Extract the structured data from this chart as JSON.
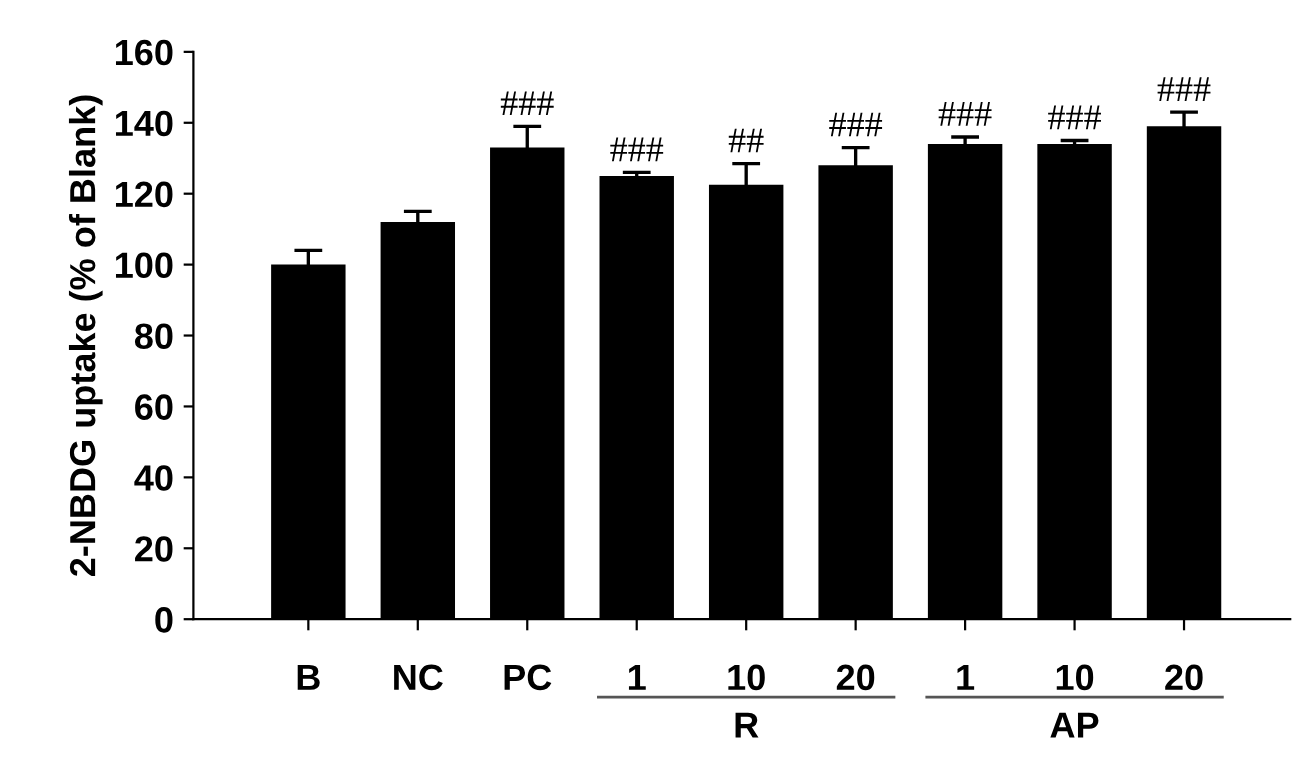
{
  "chart_data": {
    "type": "bar",
    "ylabel": "2-NBDG uptake (% of Blank)",
    "categories": [
      "B",
      "NC",
      "PC",
      "1",
      "10",
      "20",
      "1",
      "10",
      "20"
    ],
    "values": [
      100,
      112,
      133,
      125,
      122.5,
      128,
      134,
      134,
      139
    ],
    "errors": [
      4,
      3,
      6,
      1,
      6,
      5,
      2,
      1,
      4
    ],
    "value_labels": [
      null,
      null,
      "###",
      "###",
      "##",
      "###",
      "###",
      "###",
      "###"
    ],
    "color": "#000000",
    "ylim": [
      0,
      160
    ],
    "yticks": [
      0,
      20,
      40,
      60,
      80,
      100,
      120,
      140,
      160
    ],
    "grid": false,
    "annotations": [
      "R",
      "AP"
    ]
  }
}
